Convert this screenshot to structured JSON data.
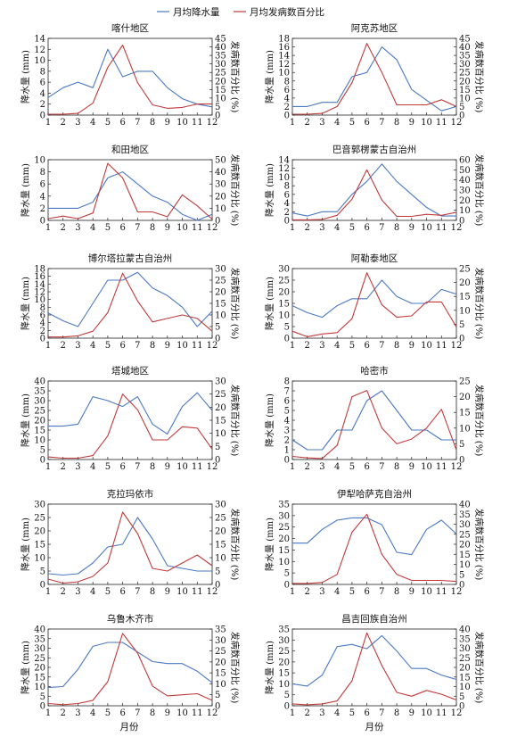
{
  "legend": {
    "precip_label": "月均降水量",
    "incidence_label": "月均发病数百分比"
  },
  "xlabel": "月份",
  "ylabel_left": "降水量 (mm)",
  "ylabel_right": "发病数百分比 (%)",
  "colors": {
    "precip": "#4a78c4",
    "incidence": "#c03a3a"
  },
  "chart_data": [
    {
      "type": "line",
      "title": "喀什地区",
      "categories": [
        1,
        2,
        3,
        4,
        5,
        6,
        7,
        8,
        9,
        10,
        11,
        12
      ],
      "yticks_left": [
        0,
        2,
        4,
        6,
        8,
        10,
        12,
        14
      ],
      "yticks_right": [
        0,
        5,
        10,
        15,
        20,
        25,
        30,
        35,
        40,
        45
      ],
      "series": [
        {
          "axis": "left",
          "values": [
            3.2,
            5,
            6,
            5,
            12,
            7,
            8,
            8,
            5,
            3,
            2,
            1.5
          ]
        },
        {
          "axis": "right",
          "values": [
            0.5,
            0.5,
            1,
            7,
            28,
            41,
            19,
            6,
            4,
            4.5,
            6.5,
            6.5
          ]
        }
      ]
    },
    {
      "type": "line",
      "title": "阿克苏地区",
      "categories": [
        1,
        2,
        3,
        4,
        5,
        6,
        7,
        8,
        9,
        10,
        11,
        12
      ],
      "yticks_left": [
        0,
        2,
        4,
        6,
        8,
        10,
        12,
        14,
        16,
        18
      ],
      "yticks_right": [
        0,
        5,
        10,
        15,
        20,
        25,
        30,
        35,
        40,
        45
      ],
      "series": [
        {
          "axis": "left",
          "values": [
            2,
            2,
            3,
            3,
            9,
            10,
            16,
            13,
            6,
            3.5,
            1,
            2
          ]
        },
        {
          "axis": "right",
          "values": [
            0.5,
            0.5,
            1,
            5,
            19,
            42,
            25,
            6,
            6,
            6,
            9,
            5
          ]
        }
      ]
    },
    {
      "type": "line",
      "title": "和田地区",
      "categories": [
        1,
        2,
        3,
        4,
        5,
        6,
        7,
        8,
        9,
        10,
        11,
        12
      ],
      "yticks_left": [
        0,
        2,
        4,
        6,
        8,
        10
      ],
      "yticks_right": [
        0,
        10,
        20,
        30,
        40,
        50
      ],
      "series": [
        {
          "axis": "left",
          "values": [
            2,
            2,
            2,
            3,
            7,
            8,
            6,
            4,
            3,
            1,
            0,
            1
          ]
        },
        {
          "axis": "right",
          "values": [
            1.5,
            3.5,
            1.5,
            6,
            47,
            35,
            7,
            7,
            3,
            21,
            12,
            1
          ]
        }
      ]
    },
    {
      "type": "line",
      "title": "巴音郭楞蒙古自治州",
      "categories": [
        1,
        2,
        3,
        4,
        5,
        6,
        7,
        8,
        9,
        10,
        11,
        12
      ],
      "yticks_left": [
        0,
        2,
        4,
        6,
        8,
        10,
        12,
        14
      ],
      "yticks_right": [
        0,
        10,
        20,
        30,
        40,
        50,
        60
      ],
      "series": [
        {
          "axis": "left",
          "values": [
            1.7,
            1,
            2,
            2,
            6,
            9,
            13,
            9,
            6,
            3,
            1,
            1
          ]
        },
        {
          "axis": "right",
          "values": [
            0.5,
            0.5,
            1,
            5,
            21,
            50,
            20,
            4,
            4,
            6,
            5,
            8
          ]
        }
      ]
    },
    {
      "type": "line",
      "title": "博尔塔拉蒙古自治州",
      "categories": [
        1,
        2,
        3,
        4,
        5,
        6,
        7,
        8,
        9,
        10,
        11,
        12
      ],
      "yticks_left": [
        0,
        2,
        4,
        6,
        8,
        10,
        12,
        14,
        16,
        18
      ],
      "yticks_right": [
        0,
        5,
        10,
        15,
        20,
        25,
        30
      ],
      "series": [
        {
          "axis": "left",
          "values": [
            6.5,
            4.5,
            3,
            9,
            15,
            15,
            17,
            13,
            11,
            8,
            3,
            7
          ]
        },
        {
          "axis": "right",
          "values": [
            0.5,
            0.5,
            1,
            3,
            11,
            28,
            16,
            7,
            8.5,
            10,
            8.5,
            3
          ]
        }
      ]
    },
    {
      "type": "line",
      "title": "阿勒泰地区",
      "categories": [
        1,
        2,
        3,
        4,
        5,
        6,
        7,
        8,
        9,
        10,
        11,
        12
      ],
      "yticks_left": [
        0,
        5,
        10,
        15,
        20,
        25,
        30
      ],
      "yticks_right": [
        0,
        5,
        10,
        15,
        20,
        25
      ],
      "series": [
        {
          "axis": "left",
          "values": [
            14,
            11,
            9,
            14,
            17,
            17,
            25,
            18,
            15,
            15,
            21,
            19
          ]
        },
        {
          "axis": "right",
          "values": [
            2.5,
            0.5,
            1.5,
            2,
            7,
            23.5,
            12,
            7.5,
            8,
            13,
            13,
            4
          ]
        }
      ]
    },
    {
      "type": "line",
      "title": "塔城地区",
      "categories": [
        1,
        2,
        3,
        4,
        5,
        6,
        7,
        8,
        9,
        10,
        11,
        12
      ],
      "yticks_left": [
        0,
        5,
        10,
        15,
        20,
        25,
        30,
        35,
        40
      ],
      "yticks_right": [
        0,
        5,
        10,
        15,
        20,
        25,
        30
      ],
      "series": [
        {
          "axis": "left",
          "values": [
            17,
            17,
            18,
            32,
            30,
            27,
            32,
            18,
            13,
            27,
            34,
            25
          ]
        },
        {
          "axis": "right",
          "values": [
            1,
            0.5,
            0.5,
            1.5,
            9,
            25,
            19,
            7.5,
            7.5,
            12.5,
            12,
            4
          ]
        }
      ]
    },
    {
      "type": "line",
      "title": "哈密市",
      "categories": [
        1,
        2,
        3,
        4,
        5,
        6,
        7,
        8,
        9,
        10,
        11,
        12
      ],
      "yticks_left": [
        0,
        1,
        2,
        3,
        4,
        5,
        6,
        7,
        8
      ],
      "yticks_right": [
        0,
        5,
        10,
        15,
        20,
        25
      ],
      "series": [
        {
          "axis": "left",
          "values": [
            2,
            1,
            1,
            3,
            3,
            6,
            7,
            5,
            3,
            3,
            2,
            2
          ]
        },
        {
          "axis": "right",
          "values": [
            1,
            0.5,
            0.3,
            4.5,
            20,
            22,
            10,
            5,
            6.5,
            10,
            16,
            3
          ]
        }
      ]
    },
    {
      "type": "line",
      "title": "克拉玛依市",
      "categories": [
        1,
        2,
        3,
        4,
        5,
        6,
        7,
        8,
        9,
        10,
        11,
        12
      ],
      "yticks_left": [
        0,
        5,
        10,
        15,
        20,
        25,
        30
      ],
      "yticks_right": [
        0,
        5,
        10,
        15,
        20,
        25,
        30
      ],
      "series": [
        {
          "axis": "left",
          "values": [
            4,
            3.5,
            4,
            8,
            14,
            15,
            25,
            17,
            7,
            6,
            5,
            5
          ]
        },
        {
          "axis": "right",
          "values": [
            2,
            0.5,
            1,
            3,
            8,
            27,
            19,
            6,
            5,
            8,
            11,
            7
          ]
        }
      ]
    },
    {
      "type": "line",
      "title": "伊犁哈萨克自治州",
      "categories": [
        1,
        2,
        3,
        4,
        5,
        6,
        7,
        8,
        9,
        10,
        11,
        12
      ],
      "yticks_left": [
        0,
        5,
        10,
        15,
        20,
        25,
        30,
        35
      ],
      "yticks_right": [
        0,
        5,
        10,
        15,
        20,
        25,
        30,
        35,
        40
      ],
      "series": [
        {
          "axis": "left",
          "values": [
            18,
            18,
            24,
            28,
            29,
            29,
            26,
            14,
            13,
            24,
            28,
            22
          ]
        },
        {
          "axis": "right",
          "values": [
            0.5,
            0.5,
            1,
            5,
            26,
            35,
            15,
            5,
            2,
            2,
            2,
            1.5
          ]
        }
      ]
    },
    {
      "type": "line",
      "title": "乌鲁木齐市",
      "categories": [
        1,
        2,
        3,
        4,
        5,
        6,
        7,
        8,
        9,
        10,
        11,
        12
      ],
      "yticks_left": [
        0,
        5,
        10,
        15,
        20,
        25,
        30,
        35,
        40
      ],
      "yticks_right": [
        0,
        5,
        10,
        15,
        20,
        25,
        30,
        35
      ],
      "series": [
        {
          "axis": "left",
          "values": [
            9.5,
            10,
            19,
            31,
            33,
            33,
            28,
            23,
            22,
            22,
            18,
            12
          ]
        },
        {
          "axis": "right",
          "values": [
            1,
            0.5,
            1,
            2.5,
            11,
            33,
            24,
            9,
            4.5,
            5,
            5.5,
            2.5
          ]
        }
      ]
    },
    {
      "type": "line",
      "title": "昌吉回族自治州",
      "categories": [
        1,
        2,
        3,
        4,
        5,
        6,
        7,
        8,
        9,
        10,
        11,
        12
      ],
      "yticks_left": [
        0,
        5,
        10,
        15,
        20,
        25,
        30,
        35
      ],
      "yticks_right": [
        0,
        5,
        10,
        15,
        20,
        25,
        30,
        35,
        40
      ],
      "series": [
        {
          "axis": "left",
          "values": [
            10,
            9,
            14,
            27,
            28,
            26,
            32,
            25,
            17,
            17,
            14,
            12
          ]
        },
        {
          "axis": "right",
          "values": [
            1,
            0.5,
            1,
            2.5,
            13,
            38,
            21,
            7,
            5,
            8,
            6,
            3
          ]
        }
      ]
    }
  ]
}
